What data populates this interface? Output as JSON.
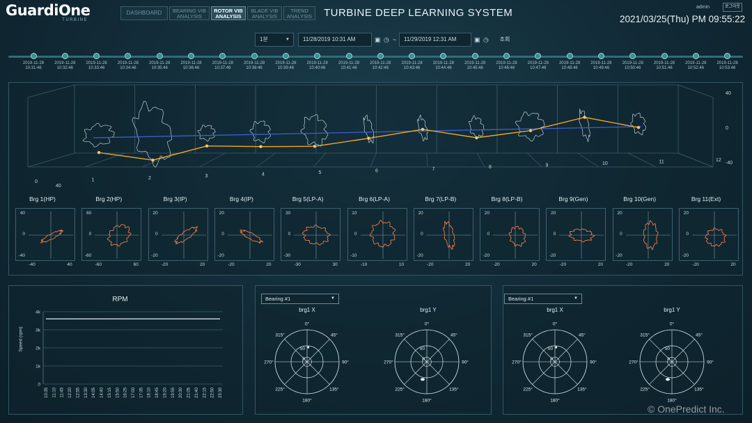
{
  "header": {
    "logo": "GuardiOne",
    "logo_sub": "TURBINE",
    "tabs": [
      {
        "label": "DASHBOARD"
      },
      {
        "label1": "BEARING VIB",
        "label2": "ANALYSIS"
      },
      {
        "label1": "ROTOR VIB",
        "label2": "ANALYSIS"
      },
      {
        "label1": "BLADE VIB",
        "label2": "ANALYSIS"
      },
      {
        "label1": "TREND",
        "label2": "ANALYSIS"
      }
    ],
    "title": "TURBINE DEEP LEARNING SYSTEM",
    "user": "admin",
    "logout": "로그아웃",
    "datetime": "2021/03/25(Thu) PM 09:55:22"
  },
  "query": {
    "interval": "1분",
    "start": "11/28/2019 10:31 AM",
    "separator": "~",
    "end": "11/29/2019 12:31 AM",
    "search": "조회"
  },
  "timeline": {
    "dates": [
      "2019-11-28",
      "2019-11-28",
      "2019-11-28",
      "2019-11-28",
      "2019-11-28",
      "2019-11-28",
      "2019-11-28",
      "2019-11-28",
      "2019-11-28",
      "2019-11-28",
      "2019-11-28",
      "2019-11-28",
      "2019-11-28",
      "2019-11-28",
      "2019-11-28",
      "2019-11-28",
      "2019-11-28",
      "2019-11-28",
      "2019-11-28",
      "2019-11-28",
      "2019-11-28",
      "2019-11-28",
      "2019-11-28"
    ],
    "times": [
      "10:31:46",
      "10:32:46",
      "10:33:46",
      "10:34:46",
      "10:35:46",
      "10:36:46",
      "10:37:46",
      "10:38:46",
      "10:39:46",
      "10:40:46",
      "10:41:46",
      "10:42:46",
      "10:43:46",
      "10:44:46",
      "10:45:46",
      "10:46:46",
      "10:47:46",
      "10:48:46",
      "10:49:46",
      "10:50:46",
      "10:51:46",
      "10:52:46",
      "10:53:46"
    ]
  },
  "chart_data": [
    {
      "type": "line",
      "x": [
        1,
        2,
        3,
        4,
        5,
        6,
        7,
        8,
        9,
        10,
        11
      ],
      "series": [
        {
          "values": [
            -17,
            -27,
            -12,
            -14,
            -15,
            -7,
            2,
            -9,
            -2,
            12,
            -1
          ]
        }
      ],
      "x_ticks": [
        "0",
        "1",
        "2",
        "3",
        "4",
        "5",
        "6",
        "7",
        "8",
        "9",
        "10",
        "11",
        "12"
      ],
      "y_ticks": [
        "40",
        "0",
        "-40"
      ],
      "depth_tick": "40",
      "colors": {
        "line": "#f5a623",
        "axis_line": "#3a5fd0",
        "orbit": "#cfe3ea"
      }
    },
    {
      "type": "scatter",
      "orbits": [
        {
          "title": "Brg 1(HP)",
          "ylim": [
            -40,
            40
          ],
          "xlim": [
            -40,
            40
          ],
          "y_ticks": [
            "40",
            "0",
            "-40"
          ],
          "x_ticks": [
            "-40",
            "40"
          ]
        },
        {
          "title": "Brg 2(HP)",
          "ylim": [
            -60,
            60
          ],
          "xlim": [
            -60,
            60
          ],
          "y_ticks": [
            "60",
            "0",
            "-60"
          ],
          "x_ticks": [
            "-60",
            "60"
          ]
        },
        {
          "title": "Brg 3(IP)",
          "ylim": [
            -20,
            20
          ],
          "xlim": [
            -20,
            20
          ],
          "y_ticks": [
            "20",
            "0",
            "-20"
          ],
          "x_ticks": [
            "-20",
            "20"
          ]
        },
        {
          "title": "Brg 4(IP)",
          "ylim": [
            -20,
            20
          ],
          "xlim": [
            -20,
            20
          ],
          "y_ticks": [
            "20",
            "0",
            "-20"
          ],
          "x_ticks": [
            "-20",
            "20"
          ]
        },
        {
          "title": "Brg 5(LP-A)",
          "ylim": [
            -30,
            30
          ],
          "xlim": [
            -30,
            30
          ],
          "y_ticks": [
            "30",
            "0",
            "-30"
          ],
          "x_ticks": [
            "-30",
            "30"
          ]
        },
        {
          "title": "Brg 6(LP-A)",
          "ylim": [
            -10,
            10
          ],
          "xlim": [
            -10,
            10
          ],
          "y_ticks": [
            "10",
            "0",
            "-10"
          ],
          "x_ticks": [
            "-10",
            "10"
          ]
        },
        {
          "title": "Brg 7(LP-B)",
          "ylim": [
            -20,
            20
          ],
          "xlim": [
            -20,
            20
          ],
          "y_ticks": [
            "20",
            "0",
            "-20"
          ],
          "x_ticks": [
            "-20",
            "20"
          ]
        },
        {
          "title": "Brg 8(LP-B)",
          "ylim": [
            -20,
            20
          ],
          "xlim": [
            -20,
            20
          ],
          "y_ticks": [
            "20",
            "0",
            "-20"
          ],
          "x_ticks": [
            "-20",
            "20"
          ]
        },
        {
          "title": "Brg 9(Gen)",
          "ylim": [
            -20,
            20
          ],
          "xlim": [
            -20,
            20
          ],
          "y_ticks": [
            "20",
            "0",
            "-20"
          ],
          "x_ticks": [
            "-20",
            "20"
          ]
        },
        {
          "title": "Brg 10(Gen)",
          "ylim": [
            -20,
            20
          ],
          "xlim": [
            -20,
            20
          ],
          "y_ticks": [
            "20",
            "0",
            "-20"
          ],
          "x_ticks": [
            "-20",
            "20"
          ]
        },
        {
          "title": "Brg 11(Ext)",
          "ylim": [
            -20,
            20
          ],
          "xlim": [
            -20,
            20
          ],
          "y_ticks": [
            "20",
            "0",
            "-20"
          ],
          "x_ticks": [
            "-20",
            "20"
          ]
        }
      ],
      "colors": {
        "orbit": "#f07a4a"
      }
    },
    {
      "type": "line",
      "title": "RPM",
      "ylabel": "Speed (rpm)",
      "y_ticks": [
        "4k",
        "3k",
        "2k",
        "1k",
        "0"
      ],
      "ylim": [
        0,
        4000
      ],
      "categories": [
        "10:35",
        "11:10",
        "11:45",
        "12:20",
        "12:55",
        "13:30",
        "14:05",
        "14:40",
        "15:15",
        "15:50",
        "16:25",
        "17:00",
        "17:35",
        "18:10",
        "18:45",
        "19:20",
        "19:55",
        "20:30",
        "21:05",
        "21:40",
        "22:15",
        "22:50",
        "23:30"
      ],
      "series": [
        {
          "values": [
            3600,
            3600,
            3600,
            3600,
            3600,
            3600,
            3600,
            3600,
            3600,
            3600,
            3600,
            3600,
            3600,
            3600,
            3600,
            3600,
            3600,
            3600,
            3600,
            3600,
            3600,
            3600,
            3600
          ]
        }
      ]
    }
  ],
  "polar_groups": [
    {
      "select": "Bearing #1",
      "plots": [
        {
          "title": "brg1 X"
        },
        {
          "title": "brg1 Y"
        }
      ]
    },
    {
      "select": "Bearing #1",
      "plots": [
        {
          "title": "brg1 X"
        },
        {
          "title": "brg1 Y"
        }
      ]
    }
  ],
  "polar_labels": {
    "deg0": "0°",
    "deg45": "45°",
    "deg90": "90°",
    "deg135": "135°",
    "deg180": "180°",
    "deg225": "225°",
    "deg270": "270°",
    "deg315": "315°",
    "r_outer": "50",
    "r_inner": "0"
  },
  "copyright": "© OnePredict Inc."
}
